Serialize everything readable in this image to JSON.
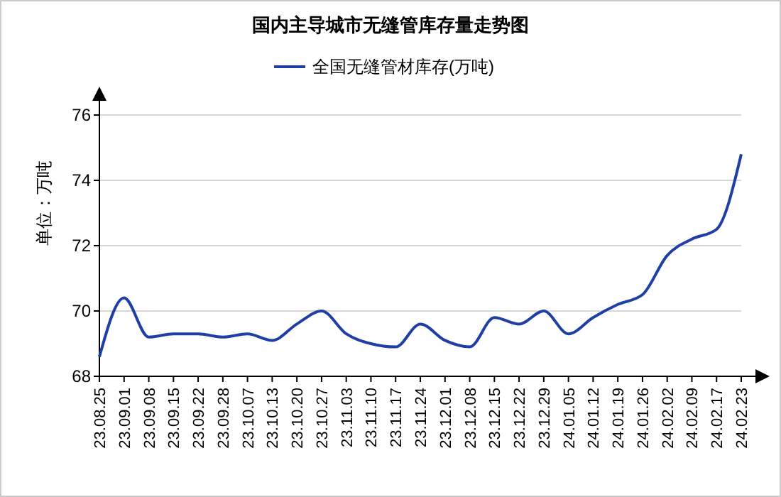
{
  "chart_data": {
    "type": "line",
    "title": "国内主导城市无缝管库存量走势图",
    "ylabel": "单位：万吨",
    "categories": [
      "23.08.25",
      "23.09.01",
      "23.09.08",
      "23.09.15",
      "23.09.22",
      "23.09.28",
      "23.10.07",
      "23.10.13",
      "23.10.20",
      "23.10.27",
      "23.11.03",
      "23.11.10",
      "23.11.17",
      "23.11.24",
      "23.12.01",
      "23.12.08",
      "23.12.15",
      "23.12.22",
      "23.12.29",
      "24.01.05",
      "24.01.12",
      "24.01.19",
      "24.01.26",
      "24.02.02",
      "24.02.09",
      "24.02.17",
      "24.02.23"
    ],
    "series": [
      {
        "name": "全国无缝管材库存(万吨)",
        "color": "#1f3fa6",
        "values": [
          68.6,
          70.4,
          69.2,
          69.3,
          69.3,
          69.2,
          69.3,
          69.1,
          69.6,
          70.0,
          69.3,
          69.0,
          68.9,
          69.6,
          69.1,
          68.9,
          69.8,
          69.6,
          70.0,
          69.3,
          69.8,
          70.2,
          70.5,
          71.7,
          72.2,
          72.5,
          74.8
        ]
      }
    ],
    "ylim": [
      68,
      76
    ],
    "yticks": [
      68,
      70,
      72,
      74,
      76
    ],
    "grid": "y",
    "legend": "top",
    "marker": "none",
    "line_style": "solid"
  }
}
